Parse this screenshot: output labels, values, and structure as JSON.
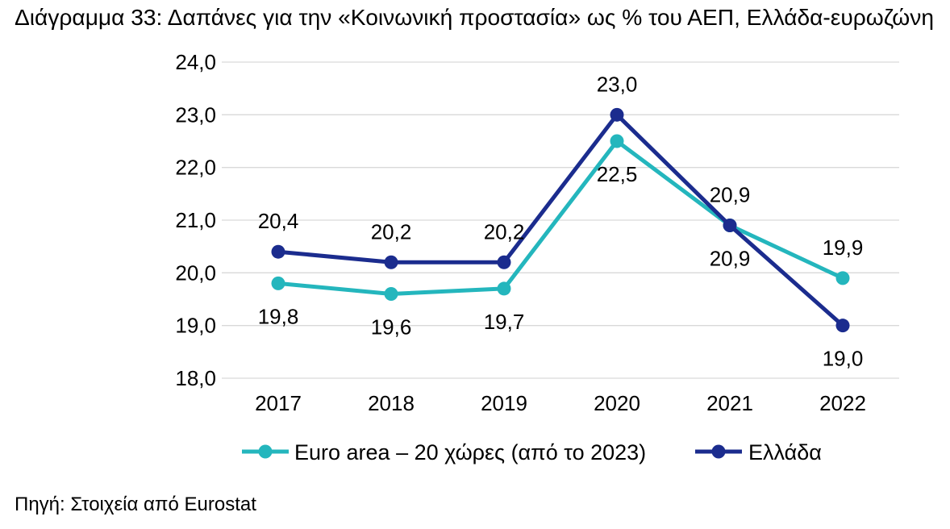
{
  "chart_data": {
    "type": "line",
    "title": "Διάγραμμα 33: Δαπάνες για την «Κοινωνική προστασία» ως % του ΑΕΠ, Ελλάδα-ευρωζώνη",
    "categories": [
      "2017",
      "2018",
      "2019",
      "2020",
      "2021",
      "2022"
    ],
    "ylim": [
      18,
      24
    ],
    "yticks": [
      18,
      19,
      20,
      21,
      22,
      23,
      24
    ],
    "ytick_labels": [
      "18,0",
      "19,0",
      "20,0",
      "21,0",
      "22,0",
      "23,0",
      "24,0"
    ],
    "grid": true,
    "legend": "bottom",
    "series": [
      {
        "name": "Euro area – 20 χώρες (από το 2023)",
        "color": "#24B6BD",
        "values": [
          19.8,
          19.6,
          19.7,
          22.5,
          20.9,
          19.9
        ],
        "labels": [
          "19,8",
          "19,6",
          "19,7",
          "22,5",
          "20,9",
          "19,9"
        ]
      },
      {
        "name": "Ελλάδα",
        "color": "#1B2C8E",
        "values": [
          20.4,
          20.2,
          20.2,
          23.0,
          20.9,
          19.0
        ],
        "labels": [
          "20,4",
          "20,2",
          "20,2",
          "23,0",
          "20,9",
          "19,0"
        ]
      }
    ]
  },
  "source": "Πηγή: Στοιχεία από Eurostat"
}
